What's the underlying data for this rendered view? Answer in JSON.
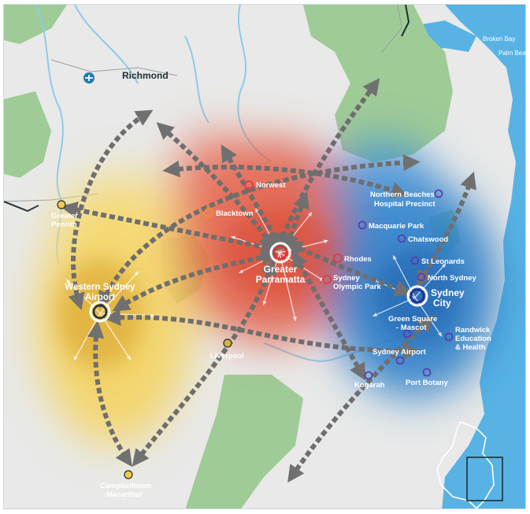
{
  "map": {
    "place_labels": {
      "richmond": "Richmond",
      "broken_bay": "Broken Bay",
      "palm_beach": "Palm Beach",
      "norwest": "Norwest",
      "blacktown": "Blacktown",
      "greater_penrith": [
        "Greater",
        "Penrith"
      ],
      "greater_parramatta": [
        "Greater",
        "Parramatta"
      ],
      "rhodes": "Rhodes",
      "sydney_olympic_park": [
        "Sydney",
        "Olympic Park"
      ],
      "northern_beaches": [
        "Northern Beaches",
        "Hospital Precinct"
      ],
      "macquarie_park": "Macquarie Park",
      "chatswood": "Chatswood",
      "st_leonards": "St Leonards",
      "north_sydney": "North Sydney",
      "sydney_city": [
        "Sydney",
        "City"
      ],
      "western_sydney_airport": [
        "Western Sydney",
        "Airport"
      ],
      "green_square": [
        "Green Square",
        "- Mascot"
      ],
      "randwick": [
        "Randwick",
        "Education",
        "& Health"
      ],
      "sydney_airport": "Sydney Airport",
      "port_botany": "Port Botany",
      "kogarah": "Kogarah",
      "liverpool": "Liverpool",
      "campbelltown": [
        "Campbelltown",
        "-Macarthur"
      ]
    },
    "icons": {
      "airport": "airport-icon",
      "locator": "locator-inset-icon"
    },
    "colors": {
      "sea": "#5ab4e5",
      "land": "#e9eaea",
      "park": "#9fcb96",
      "river": "#8fcbe8",
      "western_city": "#f2c94c",
      "central_city": "#e3563f",
      "eastern_city": "#2f7fc9",
      "connector": "#6f6f6f"
    }
  }
}
